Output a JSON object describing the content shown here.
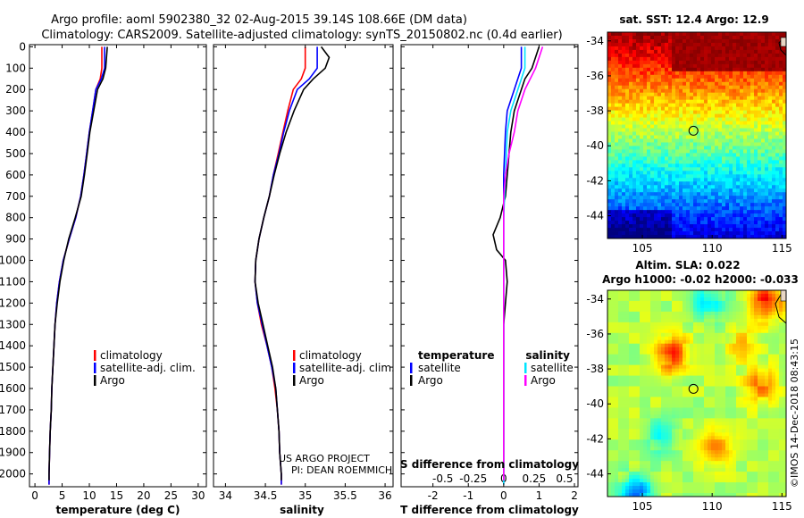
{
  "header": {
    "line1": "Argo profile: aoml 5902380_32 02-Aug-2015 39.14S 108.66E (DM data)",
    "line2": "Climatology: CARS2009. Satellite-adjusted climatology: synTS_20150802.nc (0.4d earlier)"
  },
  "side_text": "©IMOS 14-Dec-2018 08:43:15",
  "colors": {
    "climatology": "#ff0000",
    "satellite": "#0000ff",
    "argo": "#000000",
    "satellite_s": "#00e5ff",
    "argo_s": "#ff00ff"
  },
  "chart_data": [
    {
      "type": "line",
      "name": "temperature",
      "xlabel": "temperature (deg C)",
      "ylabel": "",
      "xlim": [
        -1,
        31.5
      ],
      "ylim": [
        2060,
        -10
      ],
      "xticks": [
        0,
        5,
        10,
        15,
        20,
        25,
        30
      ],
      "yticks": [
        0,
        100,
        200,
        300,
        400,
        500,
        600,
        700,
        800,
        900,
        1000,
        1100,
        1200,
        1300,
        1400,
        1500,
        1600,
        1700,
        1800,
        1900,
        2000
      ],
      "legend": {
        "position": "center",
        "entries": [
          "climatology",
          "satellite-adj. clim.",
          "Argo"
        ]
      },
      "series": [
        {
          "name": "climatology",
          "color": "#ff0000",
          "points": [
            [
              12.3,
              0
            ],
            [
              12.3,
              100
            ],
            [
              12.0,
              150
            ],
            [
              11.2,
              200
            ],
            [
              10.6,
              300
            ],
            [
              10.0,
              400
            ],
            [
              9.5,
              500
            ],
            [
              9.0,
              600
            ],
            [
              8.4,
              700
            ],
            [
              7.5,
              800
            ],
            [
              6.3,
              900
            ],
            [
              5.2,
              1000
            ],
            [
              4.5,
              1100
            ],
            [
              4.0,
              1200
            ],
            [
              3.7,
              1300
            ],
            [
              3.5,
              1400
            ],
            [
              3.3,
              1500
            ],
            [
              3.1,
              1600
            ],
            [
              3.0,
              1700
            ],
            [
              2.8,
              1800
            ],
            [
              2.7,
              1900
            ],
            [
              2.6,
              2000
            ],
            [
              2.6,
              2050
            ]
          ]
        },
        {
          "name": "satellite-adj. clim.",
          "color": "#0000ff",
          "points": [
            [
              12.8,
              0
            ],
            [
              12.8,
              100
            ],
            [
              12.2,
              150
            ],
            [
              11.2,
              200
            ],
            [
              10.6,
              300
            ],
            [
              10.0,
              400
            ],
            [
              9.5,
              500
            ],
            [
              9.0,
              600
            ],
            [
              8.4,
              700
            ],
            [
              7.5,
              800
            ],
            [
              6.3,
              900
            ],
            [
              5.2,
              1000
            ],
            [
              4.5,
              1100
            ],
            [
              4.0,
              1200
            ],
            [
              3.7,
              1300
            ],
            [
              3.5,
              1400
            ],
            [
              3.3,
              1500
            ],
            [
              3.1,
              1600
            ],
            [
              3.0,
              1700
            ],
            [
              2.8,
              1800
            ],
            [
              2.7,
              1900
            ],
            [
              2.6,
              2000
            ],
            [
              2.6,
              2050
            ]
          ]
        },
        {
          "name": "Argo",
          "color": "#000000",
          "points": [
            [
              13.3,
              0
            ],
            [
              13.0,
              100
            ],
            [
              12.5,
              150
            ],
            [
              11.5,
              200
            ],
            [
              10.8,
              300
            ],
            [
              10.1,
              400
            ],
            [
              9.6,
              500
            ],
            [
              9.1,
              600
            ],
            [
              8.5,
              700
            ],
            [
              7.4,
              800
            ],
            [
              6.2,
              900
            ],
            [
              5.3,
              1000
            ],
            [
              4.6,
              1100
            ],
            [
              4.1,
              1200
            ],
            [
              3.7,
              1300
            ],
            [
              3.5,
              1400
            ],
            [
              3.3,
              1500
            ],
            [
              3.1,
              1600
            ],
            [
              3.0,
              1700
            ],
            [
              2.8,
              1800
            ],
            [
              2.7,
              1900
            ],
            [
              2.6,
              2000
            ],
            [
              2.6,
              2030
            ]
          ]
        }
      ]
    },
    {
      "type": "line",
      "name": "salinity",
      "xlabel": "salinity",
      "xlim": [
        33.85,
        36.1
      ],
      "ylim": [
        2060,
        -10
      ],
      "xticks": [
        34,
        34.5,
        35,
        35.5,
        36
      ],
      "xtick_labels": [
        "34",
        "34.5",
        "35",
        "35.5",
        "36"
      ],
      "legend": {
        "position": "center",
        "entries": [
          "climatology",
          "satellite-adj. clim.",
          "Argo"
        ]
      },
      "annotation": [
        "US ARGO PROJECT",
        "PI: DEAN ROEMMICH"
      ],
      "series": [
        {
          "name": "climatology",
          "color": "#ff0000",
          "points": [
            [
              35.0,
              0
            ],
            [
              35.0,
              100
            ],
            [
              34.95,
              150
            ],
            [
              34.85,
              200
            ],
            [
              34.78,
              300
            ],
            [
              34.72,
              400
            ],
            [
              34.66,
              500
            ],
            [
              34.6,
              600
            ],
            [
              34.55,
              700
            ],
            [
              34.48,
              800
            ],
            [
              34.42,
              900
            ],
            [
              34.38,
              1000
            ],
            [
              34.37,
              1100
            ],
            [
              34.4,
              1200
            ],
            [
              34.45,
              1300
            ],
            [
              34.52,
              1400
            ],
            [
              34.58,
              1500
            ],
            [
              34.62,
              1600
            ],
            [
              34.65,
              1700
            ],
            [
              34.67,
              1800
            ],
            [
              34.68,
              1900
            ],
            [
              34.7,
              2000
            ],
            [
              34.7,
              2050
            ]
          ]
        },
        {
          "name": "satellite-adj. clim.",
          "color": "#0000ff",
          "points": [
            [
              35.15,
              0
            ],
            [
              35.15,
              100
            ],
            [
              35.05,
              150
            ],
            [
              34.9,
              200
            ],
            [
              34.8,
              300
            ],
            [
              34.73,
              400
            ],
            [
              34.67,
              500
            ],
            [
              34.6,
              600
            ],
            [
              34.55,
              700
            ],
            [
              34.48,
              800
            ],
            [
              34.42,
              900
            ],
            [
              34.38,
              1000
            ],
            [
              34.37,
              1100
            ],
            [
              34.4,
              1200
            ],
            [
              34.46,
              1300
            ],
            [
              34.52,
              1400
            ],
            [
              34.58,
              1500
            ],
            [
              34.63,
              1600
            ],
            [
              34.65,
              1700
            ],
            [
              34.67,
              1800
            ],
            [
              34.68,
              1900
            ],
            [
              34.7,
              2000
            ],
            [
              34.7,
              2050
            ]
          ]
        },
        {
          "name": "Argo",
          "color": "#000000",
          "points": [
            [
              35.2,
              0
            ],
            [
              35.3,
              50
            ],
            [
              35.25,
              100
            ],
            [
              35.1,
              150
            ],
            [
              34.98,
              200
            ],
            [
              34.86,
              300
            ],
            [
              34.76,
              400
            ],
            [
              34.68,
              500
            ],
            [
              34.61,
              600
            ],
            [
              34.55,
              700
            ],
            [
              34.48,
              800
            ],
            [
              34.42,
              900
            ],
            [
              34.38,
              1000
            ],
            [
              34.37,
              1100
            ],
            [
              34.41,
              1200
            ],
            [
              34.47,
              1300
            ],
            [
              34.53,
              1400
            ],
            [
              34.59,
              1500
            ],
            [
              34.63,
              1600
            ],
            [
              34.65,
              1700
            ],
            [
              34.67,
              1800
            ],
            [
              34.68,
              1900
            ],
            [
              34.7,
              2000
            ],
            [
              34.7,
              2030
            ]
          ]
        }
      ]
    },
    {
      "type": "line",
      "name": "difference",
      "xlabel": "T difference from climatology",
      "secondary_xlabel": "S difference from climatology",
      "xlim": [
        -2.9,
        2.1
      ],
      "ylim": [
        2060,
        -10
      ],
      "xticks": [
        -2,
        -1,
        0,
        1,
        2
      ],
      "secondary_xticks": [
        -0.5,
        -0.25,
        0,
        0.25,
        0.5
      ],
      "secondary_xtick_labels": [
        "-0.5",
        "-0.25",
        "0",
        "0.25",
        "0.5"
      ],
      "legend_temperature": {
        "title": "temperature",
        "entries": [
          "satellite",
          "Argo"
        ]
      },
      "legend_salinity": {
        "title": "salinity",
        "entries": [
          "satellite",
          "Argo"
        ]
      },
      "series": [
        {
          "name": "temperature satellite",
          "color": "#0000ff",
          "points": [
            [
              0.5,
              0
            ],
            [
              0.5,
              100
            ],
            [
              0.3,
              200
            ],
            [
              0.1,
              300
            ],
            [
              0.05,
              400
            ],
            [
              0.0,
              600
            ],
            [
              0.0,
              800
            ],
            [
              0.0,
              1000
            ],
            [
              0.0,
              1200
            ],
            [
              0.0,
              1400
            ],
            [
              0.0,
              1600
            ],
            [
              0.0,
              1800
            ],
            [
              0.0,
              2000
            ],
            [
              0.0,
              2050
            ]
          ]
        },
        {
          "name": "temperature Argo",
          "color": "#000000",
          "points": [
            [
              1.0,
              0
            ],
            [
              0.8,
              100
            ],
            [
              0.6,
              150
            ],
            [
              0.5,
              200
            ],
            [
              0.3,
              300
            ],
            [
              0.2,
              400
            ],
            [
              0.15,
              500
            ],
            [
              0.1,
              600
            ],
            [
              0.05,
              700
            ],
            [
              -0.1,
              800
            ],
            [
              -0.3,
              880
            ],
            [
              -0.2,
              950
            ],
            [
              0.05,
              1000
            ],
            [
              0.1,
              1100
            ],
            [
              0.05,
              1200
            ],
            [
              0.0,
              1300
            ],
            [
              0.0,
              1400
            ],
            [
              0.0,
              1500
            ],
            [
              0.0,
              1600
            ],
            [
              0.0,
              1700
            ],
            [
              0.0,
              1800
            ],
            [
              0.0,
              1900
            ],
            [
              0.0,
              2000
            ],
            [
              0.0,
              2030
            ]
          ]
        },
        {
          "name": "salinity satellite",
          "color": "#00e5ff",
          "points": [
            [
              0.6,
              0
            ],
            [
              0.6,
              100
            ],
            [
              0.4,
              200
            ],
            [
              0.2,
              300
            ],
            [
              0.1,
              400
            ],
            [
              0.05,
              600
            ],
            [
              0.0,
              800
            ],
            [
              0.0,
              1000
            ],
            [
              0.0,
              1200
            ],
            [
              0.0,
              1400
            ],
            [
              0.0,
              1600
            ],
            [
              0.0,
              1800
            ],
            [
              0.0,
              2000
            ],
            [
              0.0,
              2050
            ]
          ]
        },
        {
          "name": "salinity Argo",
          "color": "#ff00ff",
          "points": [
            [
              1.1,
              0
            ],
            [
              0.9,
              100
            ],
            [
              0.6,
              200
            ],
            [
              0.4,
              300
            ],
            [
              0.3,
              400
            ],
            [
              0.15,
              500
            ],
            [
              0.05,
              600
            ],
            [
              0.0,
              700
            ],
            [
              0.0,
              900
            ],
            [
              0.0,
              1100
            ],
            [
              0.0,
              1300
            ],
            [
              0.0,
              1500
            ],
            [
              0.0,
              1700
            ],
            [
              0.0,
              1900
            ],
            [
              0.0,
              2030
            ]
          ]
        }
      ]
    },
    {
      "type": "heatmap",
      "name": "sst-map",
      "title": "sat. SST: 12.4 Argo: 12.9",
      "xlim": [
        102.5,
        115.3
      ],
      "ylim": [
        -45.3,
        -33.5
      ],
      "xticks": [
        105,
        110,
        115
      ],
      "yticks": [
        -34,
        -36,
        -38,
        -40,
        -42,
        -44
      ],
      "marker": {
        "lon": 108.66,
        "lat": -39.14
      }
    },
    {
      "type": "heatmap",
      "name": "sla-map",
      "title": "Altim. SLA: 0.022",
      "subtitle": "Argo h1000: -0.02 h2000: -0.033",
      "xlim": [
        102.5,
        115.3
      ],
      "ylim": [
        -45.3,
        -33.5
      ],
      "xticks": [
        105,
        110,
        115
      ],
      "yticks": [
        -34,
        -36,
        -38,
        -40,
        -42,
        -44
      ],
      "marker": {
        "lon": 108.66,
        "lat": -39.14
      }
    }
  ]
}
